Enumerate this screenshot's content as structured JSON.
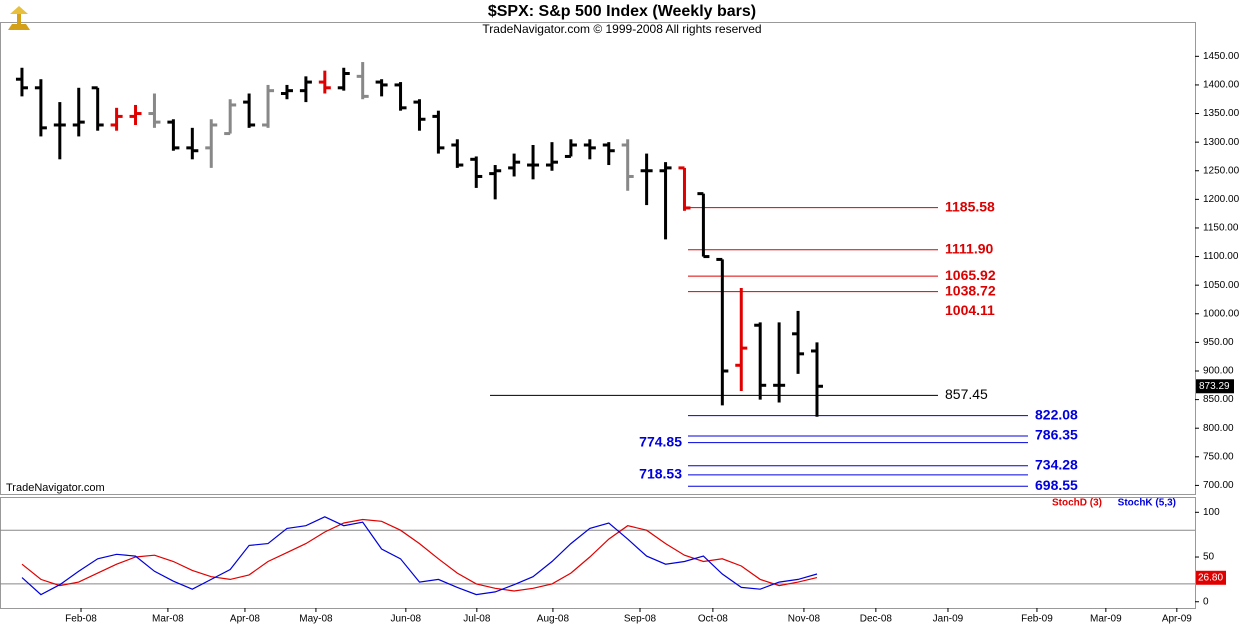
{
  "header": {
    "title": "$SPX:  S&p 500 Index  (Weekly bars)",
    "subtitle": "TradeNavigator.com © 1999-2008 All rights reserved",
    "watermark": "TradeNavigator.com"
  },
  "chart_data": [
    {
      "type": "ohlc",
      "x": [
        0,
        1,
        2,
        3,
        4,
        5,
        6,
        7,
        8,
        9,
        10,
        11,
        12,
        13,
        14,
        15,
        16,
        17,
        18,
        19,
        20,
        21,
        22,
        23,
        24,
        25,
        26,
        27,
        28,
        29,
        30,
        31,
        32,
        33,
        34,
        35,
        36,
        37,
        38,
        39,
        40,
        41,
        42
      ],
      "open": [
        1410,
        1395,
        1330,
        1330,
        1395,
        1330,
        1345,
        1350,
        1335,
        1290,
        1290,
        1315,
        1370,
        1330,
        1385,
        1390,
        1405,
        1395,
        1415,
        1405,
        1400,
        1370,
        1345,
        1295,
        1270,
        1245,
        1255,
        1260,
        1260,
        1275,
        1295,
        1295,
        1295,
        1250,
        1250,
        1255,
        1210,
        1095,
        910,
        980,
        875,
        965,
        935
      ],
      "high": [
        1430,
        1410,
        1370,
        1395,
        1395,
        1360,
        1365,
        1385,
        1340,
        1325,
        1340,
        1375,
        1385,
        1400,
        1400,
        1415,
        1425,
        1430,
        1440,
        1410,
        1405,
        1375,
        1355,
        1305,
        1275,
        1260,
        1280,
        1295,
        1300,
        1305,
        1305,
        1300,
        1305,
        1280,
        1265,
        1255,
        1210,
        1095,
        1045,
        985,
        985,
        1005,
        950
      ],
      "low": [
        1380,
        1310,
        1270,
        1310,
        1320,
        1320,
        1330,
        1325,
        1285,
        1270,
        1255,
        1315,
        1325,
        1325,
        1375,
        1370,
        1385,
        1390,
        1375,
        1380,
        1355,
        1320,
        1280,
        1255,
        1220,
        1200,
        1240,
        1235,
        1250,
        1275,
        1270,
        1260,
        1215,
        1190,
        1130,
        1180,
        1100,
        840,
        865,
        850,
        845,
        895,
        820
      ],
      "close": [
        1395,
        1325,
        1330,
        1335,
        1330,
        1345,
        1350,
        1335,
        1290,
        1285,
        1330,
        1365,
        1330,
        1390,
        1390,
        1405,
        1395,
        1420,
        1380,
        1400,
        1360,
        1340,
        1290,
        1260,
        1240,
        1250,
        1265,
        1260,
        1265,
        1295,
        1290,
        1285,
        1240,
        1250,
        1255,
        1185,
        1100,
        900,
        940,
        875,
        875,
        930,
        873.29
      ],
      "colors": [
        "#000000",
        "#000000",
        "#000000",
        "#000000",
        "#000000",
        "#e00000",
        "#e00000",
        "#888888",
        "#000000",
        "#000000",
        "#888888",
        "#888888",
        "#000000",
        "#888888",
        "#000000",
        "#000000",
        "#e00000",
        "#000000",
        "#888888",
        "#000000",
        "#000000",
        "#000000",
        "#000000",
        "#000000",
        "#000000",
        "#000000",
        "#000000",
        "#000000",
        "#000000",
        "#000000",
        "#000000",
        "#000000",
        "#888888",
        "#000000",
        "#000000",
        "#e00000",
        "#000000",
        "#000000",
        "#e00000",
        "#000000",
        "#000000",
        "#000000",
        "#000000"
      ],
      "last_price": 873.29,
      "xlim": [
        -1.16,
        61.97
      ],
      "ylim": [
        685,
        1510
      ],
      "yticks": [
        {
          "value": 700,
          "label": "700.00"
        },
        {
          "value": 750,
          "label": "750.00"
        },
        {
          "value": 800,
          "label": "800.00"
        },
        {
          "value": 850,
          "label": "850.00"
        },
        {
          "value": 900,
          "label": "900.00"
        },
        {
          "value": 950,
          "label": "950.00"
        },
        {
          "value": 1000,
          "label": "1000.00"
        },
        {
          "value": 1050,
          "label": "1050.00"
        },
        {
          "value": 1100,
          "label": "1100.00"
        },
        {
          "value": 1150,
          "label": "1150.00"
        },
        {
          "value": 1200,
          "label": "1200.00"
        },
        {
          "value": 1250,
          "label": "1250.00"
        },
        {
          "value": 1300,
          "label": "1300.00"
        },
        {
          "value": 1350,
          "label": "1350.00"
        },
        {
          "value": 1400,
          "label": "1400.00"
        },
        {
          "value": 1450,
          "label": "1450.00"
        }
      ],
      "levels": [
        {
          "value": 1185.58,
          "label": "1185.58",
          "color": "#dd0000",
          "line": true,
          "label_side": "right"
        },
        {
          "value": 1111.9,
          "label": "1111.90",
          "color": "#dd0000",
          "line": true,
          "label_side": "right"
        },
        {
          "value": 1065.92,
          "label": "1065.92",
          "color": "#dd0000",
          "line": true,
          "label_side": "right"
        },
        {
          "value": 1038.72,
          "label": "1038.72",
          "color": "#dd0000",
          "line": true,
          "label_side": "right"
        },
        {
          "value": 1004.11,
          "label": "1004.11",
          "color": "#dd0000",
          "line": false,
          "label_side": "right"
        },
        {
          "value": 857.45,
          "label": "857.45",
          "color": "#000000",
          "line": true,
          "label_side": "right"
        },
        {
          "value": 822.08,
          "label": "822.08",
          "color": "#0000dd",
          "line": true,
          "label_side": "right"
        },
        {
          "value": 786.35,
          "label": "786.35",
          "color": "#0000dd",
          "line": true,
          "label_side": "right"
        },
        {
          "value": 774.85,
          "label": "774.85",
          "color": "#0000dd",
          "line": true,
          "label_side": "left"
        },
        {
          "value": 734.28,
          "label": "734.28",
          "color": "#0000dd",
          "line": true,
          "label_side": "right"
        },
        {
          "value": 718.53,
          "label": "718.53",
          "color": "#0000dd",
          "line": true,
          "label_side": "left"
        },
        {
          "value": 698.55,
          "label": "698.55",
          "color": "#0000dd",
          "line": true,
          "label_side": "right"
        }
      ]
    },
    {
      "type": "line",
      "x": [
        0,
        1,
        2,
        3,
        4,
        5,
        6,
        7,
        8,
        9,
        10,
        11,
        12,
        13,
        14,
        15,
        16,
        17,
        18,
        19,
        20,
        21,
        22,
        23,
        24,
        25,
        26,
        27,
        28,
        29,
        30,
        31,
        32,
        33,
        34,
        35,
        36,
        37,
        38,
        39,
        40,
        41,
        42
      ],
      "series": [
        {
          "name": "StochD (3)",
          "color": "#e00000",
          "values": [
            42,
            25,
            18,
            22,
            32,
            42,
            50,
            52,
            45,
            35,
            28,
            25,
            30,
            45,
            55,
            65,
            78,
            88,
            92,
            90,
            80,
            65,
            48,
            32,
            20,
            15,
            12,
            15,
            20,
            32,
            50,
            70,
            85,
            80,
            65,
            52,
            45,
            48,
            40,
            25,
            18,
            22,
            27
          ]
        },
        {
          "name": "StochK (5,3)",
          "color": "#0000dd",
          "values": [
            27,
            8,
            19,
            34,
            48,
            53,
            51,
            34,
            23,
            14,
            25,
            36,
            63,
            65,
            82,
            85,
            95,
            85,
            89,
            59,
            48,
            22,
            25,
            16,
            8,
            11,
            19,
            28,
            45,
            65,
            82,
            88,
            70,
            51,
            42,
            45,
            51,
            31,
            16,
            14,
            22,
            25,
            31
          ]
        }
      ],
      "last_value": 26.8,
      "last_label": "26.80",
      "bands": [
        20,
        80
      ],
      "xlim": [
        -1.16,
        61.97
      ],
      "ylim": [
        -7,
        116
      ],
      "yticks": [
        0,
        50,
        100
      ],
      "xticks": [
        {
          "value": 3.12,
          "label": "Feb-08"
        },
        {
          "value": 7.71,
          "label": "Mar-08"
        },
        {
          "value": 11.78,
          "label": "Apr-08"
        },
        {
          "value": 15.53,
          "label": "May-08"
        },
        {
          "value": 20.28,
          "label": "Jun-08"
        },
        {
          "value": 24.03,
          "label": "Jul-08"
        },
        {
          "value": 28.05,
          "label": "Aug-08"
        },
        {
          "value": 32.65,
          "label": "Sep-08"
        },
        {
          "value": 36.5,
          "label": "Oct-08"
        },
        {
          "value": 41.31,
          "label": "Nov-08"
        },
        {
          "value": 45.11,
          "label": "Dec-08"
        },
        {
          "value": 48.92,
          "label": "Jan-09"
        },
        {
          "value": 53.62,
          "label": "Feb-09"
        },
        {
          "value": 57.26,
          "label": "Mar-09"
        },
        {
          "value": 61.01,
          "label": "Apr-09"
        }
      ]
    }
  ]
}
